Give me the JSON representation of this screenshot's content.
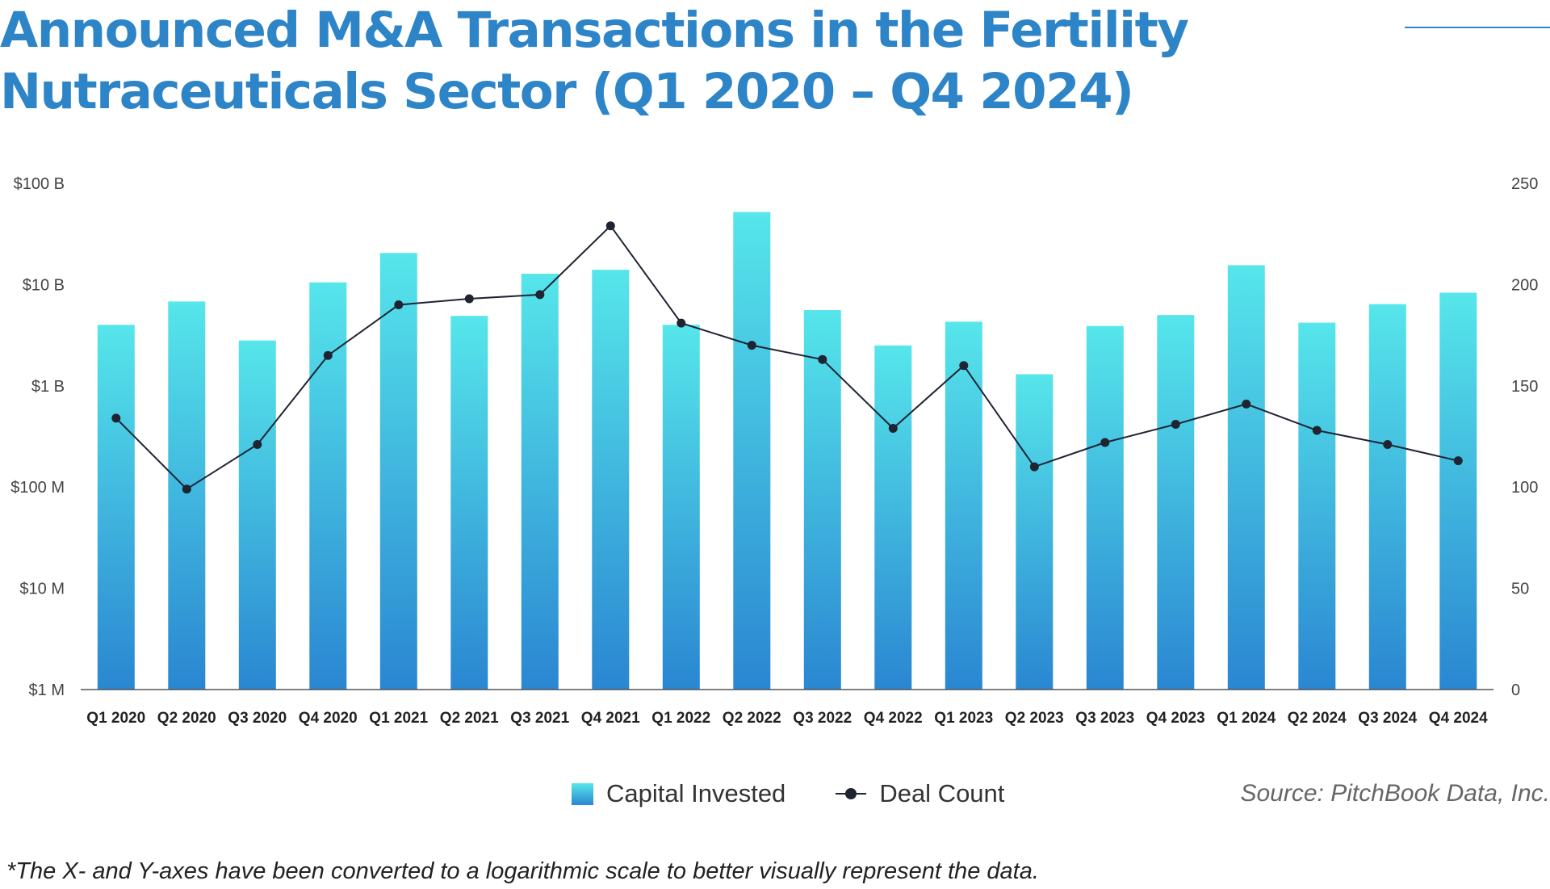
{
  "title": "Announced M&A Transactions in the Fertility Nutraceuticals Sector (Q1 2020 – Q4 2024)",
  "source": "Source: PitchBook Data, Inc.",
  "footnote": "*The X- and Y-axes have been converted to a logarithmic scale to better visually represent the data.",
  "legend": {
    "bar_label": "Capital Invested",
    "line_label": "Deal Count"
  },
  "colors": {
    "title": "#2d84c7",
    "bar_top": "#56e6eb",
    "bar_bottom": "#2a86d1",
    "line": "#1f2433",
    "axis": "#555555"
  },
  "chart_data": {
    "type": "bar",
    "combo": "bar-line",
    "y_scale_left": "log",
    "grid": false,
    "legend_position": "bottom-center",
    "categories": [
      "Q1 2020",
      "Q2 2020",
      "Q3 2020",
      "Q4 2020",
      "Q1 2021",
      "Q2 2021",
      "Q3 2021",
      "Q4 2021",
      "Q1 2022",
      "Q2 2022",
      "Q3 2022",
      "Q4 2022",
      "Q1 2023",
      "Q2 2023",
      "Q3 2023",
      "Q4 2023",
      "Q1 2024",
      "Q2 2024",
      "Q3 2024",
      "Q4 2024"
    ],
    "left_axis": {
      "ylim_usd": [
        1000000,
        100000000000
      ],
      "ticks": [
        {
          "value": 1000000,
          "label": "$1 M"
        },
        {
          "value": 10000000,
          "label": "$10 M"
        },
        {
          "value": 100000000,
          "label": "$100 M"
        },
        {
          "value": 1000000000,
          "label": "$1 B"
        },
        {
          "value": 10000000000,
          "label": "$10 B"
        },
        {
          "value": 100000000000,
          "label": "$100 B"
        }
      ]
    },
    "right_axis": {
      "ylim": [
        0,
        250
      ],
      "ticks": [
        {
          "value": 0,
          "label": "0"
        },
        {
          "value": 50,
          "label": "50"
        },
        {
          "value": 100,
          "label": "100"
        },
        {
          "value": 150,
          "label": "150"
        },
        {
          "value": 200,
          "label": "200"
        },
        {
          "value": 250,
          "label": "250"
        }
      ]
    },
    "series": [
      {
        "name": "Capital Invested",
        "type": "bar",
        "axis": "left",
        "values_usd": [
          4000000000,
          6800000000,
          2800000000,
          10500000000,
          20500000000,
          4900000000,
          12800000000,
          14000000000,
          4000000000,
          52000000000,
          5600000000,
          2500000000,
          4300000000,
          1300000000,
          3900000000,
          5000000000,
          15500000000,
          4200000000,
          6400000000,
          8300000000
        ]
      },
      {
        "name": "Deal Count",
        "type": "line",
        "axis": "right",
        "values": [
          134,
          99,
          121,
          165,
          190,
          193,
          195,
          229,
          181,
          170,
          163,
          129,
          160,
          110,
          122,
          131,
          141,
          128,
          121,
          113
        ]
      }
    ]
  }
}
